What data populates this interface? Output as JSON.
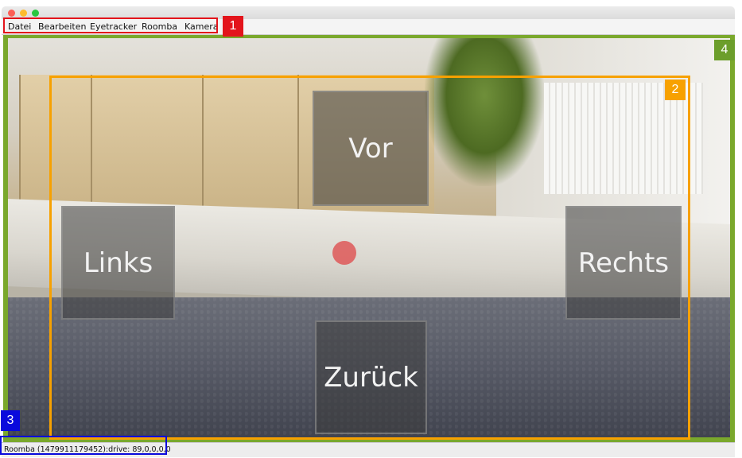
{
  "window": {
    "controls": [
      "close",
      "minimize",
      "zoom"
    ]
  },
  "menubar": {
    "items": [
      {
        "label": "Datei"
      },
      {
        "label": "Bearbeiten"
      },
      {
        "label": "Eyetracker"
      },
      {
        "label": "Roomba"
      },
      {
        "label": "Kamera"
      }
    ]
  },
  "controls": {
    "forward_label": "Vor",
    "left_label": "Links",
    "right_label": "Rechts",
    "back_label": "Zurück"
  },
  "callouts": {
    "menu": "1",
    "control_area": "2",
    "status": "3",
    "camera": "4"
  },
  "statusbar": {
    "text": "Roomba (1479911179452):drive: 89,0,0,0,0"
  },
  "colors": {
    "callout_menu": "#e3141b",
    "callout_control_area": "#f7a100",
    "callout_status": "#0a0adc",
    "callout_camera": "#6c9e2b",
    "gaze_dot": "#de5858"
  }
}
